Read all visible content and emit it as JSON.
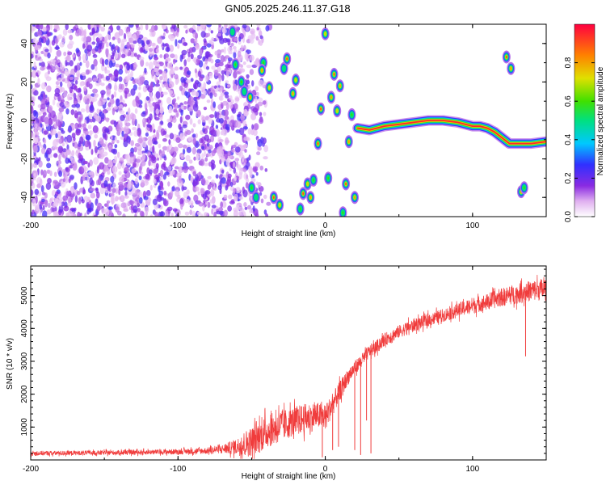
{
  "page": {
    "title": "GN05.2025.246.11.37.G18"
  },
  "chart_data": [
    {
      "type": "heatmap",
      "xlabel": "Height of straight line (km)",
      "ylabel": "Frequency (Hz)",
      "xlim": [
        -200,
        150
      ],
      "ylim": [
        -50,
        50
      ],
      "xticks": [
        -200,
        -100,
        0,
        100
      ],
      "xtick_labels": [
        "-200",
        "-100",
        "0",
        "100"
      ],
      "yticks": [
        -40,
        -20,
        0,
        20,
        40
      ],
      "ytick_labels": [
        "-40",
        "-20",
        "0",
        "20",
        "40"
      ],
      "grid": false,
      "noise_region": {
        "x_from": -200,
        "x_to": -55,
        "edge_to": -37
      },
      "ridge": {
        "points": [
          [
            22,
            -4
          ],
          [
            30,
            -5
          ],
          [
            40,
            -3
          ],
          [
            50,
            -2
          ],
          [
            60,
            -1
          ],
          [
            70,
            0
          ],
          [
            80,
            0
          ],
          [
            90,
            -1
          ],
          [
            100,
            -3
          ],
          [
            105,
            -3
          ],
          [
            110,
            -4
          ],
          [
            115,
            -6
          ],
          [
            120,
            -9
          ],
          [
            125,
            -12
          ],
          [
            130,
            -12
          ],
          [
            140,
            -12
          ],
          [
            150,
            -11
          ]
        ]
      },
      "blobs": [
        [
          -63,
          46,
          0.5
        ],
        [
          -61,
          29,
          0.6
        ],
        [
          -57,
          20,
          0.6
        ],
        [
          -55,
          15,
          0.5
        ],
        [
          -51,
          12,
          0.8
        ],
        [
          -50,
          -35,
          0.6
        ],
        [
          -47,
          -40,
          0.5
        ],
        [
          -42,
          30,
          0.6
        ],
        [
          -43,
          26,
          0.8
        ],
        [
          -38,
          17,
          0.7
        ],
        [
          -35,
          -40,
          0.9
        ],
        [
          -31,
          -44,
          0.7
        ],
        [
          -28,
          27,
          0.5
        ],
        [
          -26,
          32,
          0.9
        ],
        [
          -22,
          14,
          0.8
        ],
        [
          -20,
          21,
          0.7
        ],
        [
          -17,
          -46,
          0.6
        ],
        [
          -15,
          -38,
          0.9
        ],
        [
          -12,
          -33,
          0.7
        ],
        [
          -10,
          -40,
          0.8
        ],
        [
          -8,
          -31,
          0.6
        ],
        [
          -5,
          -12,
          0.9
        ],
        [
          -3,
          6,
          0.9
        ],
        [
          0,
          45,
          0.7
        ],
        [
          2,
          -30,
          0.6
        ],
        [
          4,
          12,
          0.8
        ],
        [
          6,
          24,
          0.9
        ],
        [
          8,
          5,
          0.7
        ],
        [
          10,
          18,
          0.8
        ],
        [
          12,
          -48,
          0.6
        ],
        [
          14,
          -33,
          0.9
        ],
        [
          16,
          -11,
          0.8
        ],
        [
          18,
          3,
          0.6
        ],
        [
          20,
          -40,
          0.8
        ],
        [
          123,
          33,
          0.9
        ],
        [
          126,
          27,
          0.8
        ],
        [
          133,
          -37,
          0.8
        ],
        [
          135,
          -35,
          0.6
        ]
      ],
      "colorbar": {
        "label": "Normalized spectral amplitude",
        "ticks": [
          0.0,
          0.2,
          0.4,
          0.6,
          0.8
        ],
        "tick_labels": [
          "0.0",
          "0.2",
          "0.4",
          "0.6",
          "0.8"
        ],
        "range": [
          0,
          1
        ],
        "colormap": "rainbow"
      }
    },
    {
      "type": "line",
      "xlabel": "Height of straight line (km)",
      "ylabel": "SNR (10 * v/v)",
      "xlim": [
        -200,
        150
      ],
      "ylim": [
        0,
        5900
      ],
      "xticks": [
        -200,
        -100,
        0,
        100
      ],
      "xtick_labels": [
        "-200",
        "-100",
        "0",
        "100"
      ],
      "yticks": [
        1000,
        2000,
        3000,
        4000,
        5000
      ],
      "ytick_labels": [
        "1000",
        "2000",
        "3000",
        "4000",
        "5000"
      ],
      "color": "#f03c3c",
      "grid": false,
      "series": [
        {
          "x": [
            -200,
            -150,
            -100,
            -80,
            -70,
            -60,
            -55,
            -50,
            -45,
            -40,
            -35,
            -30,
            -25,
            -20,
            -15,
            -10,
            -5,
            0,
            5,
            10,
            15,
            20,
            25,
            30,
            35,
            40,
            50,
            60,
            70,
            80,
            90,
            100,
            110,
            120,
            130,
            140,
            150
          ],
          "values": [
            200,
            220,
            250,
            280,
            330,
            400,
            480,
            560,
            700,
            850,
            950,
            1050,
            1100,
            1200,
            1250,
            1300,
            1350,
            1300,
            1700,
            2100,
            2500,
            2800,
            3050,
            3300,
            3450,
            3650,
            3900,
            4100,
            4250,
            4400,
            4550,
            4700,
            4800,
            4950,
            5050,
            5150,
            5200
          ],
          "noise": [
            70,
            70,
            80,
            100,
            130,
            250,
            400,
            450,
            500,
            500,
            500,
            500,
            450,
            450,
            450,
            450,
            400,
            400,
            350,
            300,
            250,
            220,
            200,
            200,
            200,
            200,
            200,
            200,
            200,
            200,
            220,
            250,
            250,
            280,
            300,
            320,
            350
          ]
        }
      ],
      "spikes": [
        [
          -2,
          80
        ],
        [
          5,
          300
        ],
        [
          9,
          400
        ],
        [
          20,
          300
        ],
        [
          24,
          150
        ],
        [
          28,
          1200
        ],
        [
          31,
          200
        ],
        [
          136,
          3150
        ]
      ]
    }
  ]
}
